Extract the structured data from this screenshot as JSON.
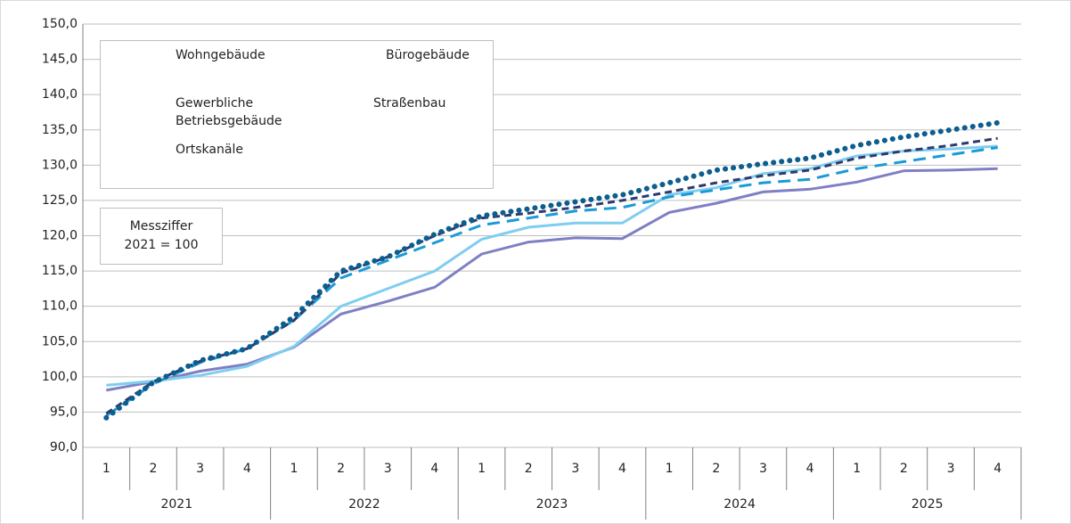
{
  "chart_data": {
    "type": "line",
    "categories": [
      "1",
      "2",
      "3",
      "4",
      "1",
      "2",
      "3",
      "4",
      "1",
      "2",
      "3",
      "4",
      "1",
      "2",
      "3",
      "4",
      "1",
      "2",
      "3",
      "4"
    ],
    "years": [
      "2021",
      "2022",
      "2023",
      "2024",
      "2025"
    ],
    "annotation": "Messziffer 2021 = 100",
    "ylim": [
      90,
      150
    ],
    "yticks": [
      {
        "value": 90,
        "label": "90,0"
      },
      {
        "value": 95,
        "label": "95,0"
      },
      {
        "value": 100,
        "label": "100,0"
      },
      {
        "value": 105,
        "label": "105,0"
      },
      {
        "value": 110,
        "label": "110,0"
      },
      {
        "value": 115,
        "label": "115,0"
      },
      {
        "value": 120,
        "label": "120,0"
      },
      {
        "value": 125,
        "label": "125,0"
      },
      {
        "value": 130,
        "label": "130,0"
      },
      {
        "value": 135,
        "label": "135,0"
      },
      {
        "value": 140,
        "label": "140,0"
      },
      {
        "value": 145,
        "label": "145,0"
      },
      {
        "value": 150,
        "label": "150,0"
      }
    ],
    "grid": true,
    "legend": "upper left",
    "series": [
      {
        "name": "Wohngebäude",
        "color": "#1a9ad6",
        "style": "long-dash",
        "values": [
          94.5,
          99,
          102,
          104,
          108,
          114,
          116.5,
          119,
          121.5,
          122.5,
          123.5,
          124,
          125.5,
          126.5,
          127.5,
          128,
          129.5,
          130.5,
          131.5,
          132.5
        ]
      },
      {
        "name": "Bürogebäude",
        "color": "#0b5e8e",
        "style": "dotted",
        "values": [
          94.2,
          99.2,
          102.3,
          104,
          108.5,
          115,
          117,
          120.2,
          122.8,
          123.8,
          124.8,
          125.8,
          127.5,
          129.3,
          130.2,
          131,
          132.8,
          134,
          135,
          136
        ]
      },
      {
        "name": "Gewerbliche Betriebsgebäude",
        "color": "#2e3a6e",
        "style": "dashed",
        "values": [
          94.8,
          99.3,
          102.2,
          104,
          108,
          114.7,
          117,
          120,
          122.5,
          123.2,
          124,
          125,
          126.2,
          127.5,
          128.5,
          129.3,
          131,
          132,
          132.8,
          133.8
        ]
      },
      {
        "name": "Straßenbau",
        "color": "#7fcdf0",
        "style": "solid",
        "values": [
          98.8,
          99.4,
          100.2,
          101.5,
          104.3,
          110,
          112.5,
          115,
          119.5,
          121.2,
          121.8,
          121.8,
          125.8,
          126.8,
          128.8,
          129.5,
          131.3,
          132,
          132.3,
          132.7
        ]
      },
      {
        "name": "Ortskanäle",
        "color": "#7f7fc4",
        "style": "solid",
        "values": [
          98.1,
          99.3,
          100.8,
          101.8,
          104.2,
          108.9,
          110.7,
          112.7,
          117.4,
          119.1,
          119.7,
          119.6,
          123.3,
          124.6,
          126.2,
          126.6,
          127.6,
          129.2,
          129.3,
          129.5
        ]
      }
    ]
  }
}
